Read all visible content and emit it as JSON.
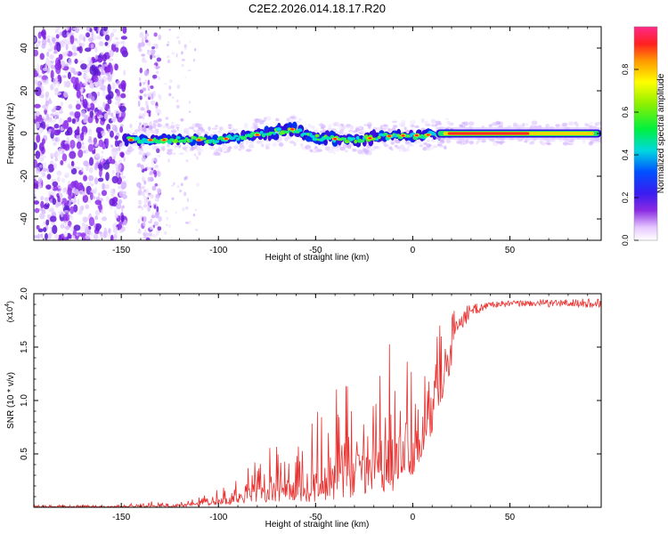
{
  "figure": {
    "title": "C2E2.2026.014.18.17.R20"
  },
  "chart_data": [
    {
      "type": "heatmap",
      "xlabel": "Height of straight line (km)",
      "ylabel": "Frequency (Hz)",
      "xlim": [
        -195,
        97
      ],
      "ylim": [
        -50,
        50
      ],
      "xticks": [
        -150,
        -100,
        -50,
        0,
        50
      ],
      "yticks": [
        -40,
        -20,
        0,
        20,
        40
      ],
      "trace_center_hz": [
        {
          "x": -148,
          "y": -3
        },
        {
          "x": -130,
          "y": -3
        },
        {
          "x": -100,
          "y": -3
        },
        {
          "x": -75,
          "y": 0
        },
        {
          "x": -62,
          "y": 2
        },
        {
          "x": -50,
          "y": -2
        },
        {
          "x": -30,
          "y": -3
        },
        {
          "x": -10,
          "y": -1
        },
        {
          "x": 0,
          "y": -1
        },
        {
          "x": 20,
          "y": 0
        },
        {
          "x": 95,
          "y": 0
        }
      ],
      "colorbar": {
        "label": "Normalized spectral amplitude",
        "range": [
          0,
          1
        ],
        "ticks": [
          0.0,
          0.2,
          0.4,
          0.6,
          0.8
        ],
        "tick_labels": [
          "0.0",
          "0.2",
          "0.4",
          "0.6",
          "0.8"
        ]
      }
    },
    {
      "type": "line",
      "xlabel": "Height of straight line (km)",
      "ylabel": "SNR (10 * v/v)",
      "y_multiplier": "(x10",
      "y_multiplier_exp": "4",
      "xlim": [
        -195,
        97
      ],
      "ylim": [
        0,
        2.0
      ],
      "xticks": [
        -150,
        -100,
        -50,
        0,
        50
      ],
      "yticks": [
        0.5,
        1.0,
        1.5,
        2.0
      ],
      "ytick_labels": [
        "0.5",
        "1.0",
        "1.5",
        "2.0"
      ],
      "series": [
        {
          "name": "SNR",
          "color": "#e8312f",
          "envelope": [
            {
              "x": -195,
              "min": 0.0,
              "max": 0.02
            },
            {
              "x": -150,
              "min": 0.0,
              "max": 0.02
            },
            {
              "x": -140,
              "min": 0.0,
              "max": 0.06
            },
            {
              "x": -125,
              "min": 0.0,
              "max": 0.05
            },
            {
              "x": -110,
              "min": 0.01,
              "max": 0.1
            },
            {
              "x": -95,
              "min": 0.03,
              "max": 0.2
            },
            {
              "x": -80,
              "min": 0.05,
              "max": 0.45
            },
            {
              "x": -70,
              "min": 0.05,
              "max": 0.65
            },
            {
              "x": -60,
              "min": 0.05,
              "max": 0.6
            },
            {
              "x": -50,
              "min": 0.05,
              "max": 0.9
            },
            {
              "x": -40,
              "min": 0.05,
              "max": 1.2
            },
            {
              "x": -30,
              "min": 0.1,
              "max": 1.15
            },
            {
              "x": -20,
              "min": 0.15,
              "max": 1.3
            },
            {
              "x": -10,
              "min": 0.15,
              "max": 1.6
            },
            {
              "x": 0,
              "min": 0.3,
              "max": 1.65
            },
            {
              "x": 10,
              "min": 0.7,
              "max": 1.75
            },
            {
              "x": 20,
              "min": 1.3,
              "max": 1.85
            },
            {
              "x": 30,
              "min": 1.7,
              "max": 1.9
            },
            {
              "x": 40,
              "min": 1.83,
              "max": 1.93
            },
            {
              "x": 60,
              "min": 1.84,
              "max": 1.94
            },
            {
              "x": 80,
              "min": 1.82,
              "max": 1.95
            },
            {
              "x": 97,
              "min": 1.8,
              "max": 1.96
            }
          ]
        }
      ]
    }
  ]
}
